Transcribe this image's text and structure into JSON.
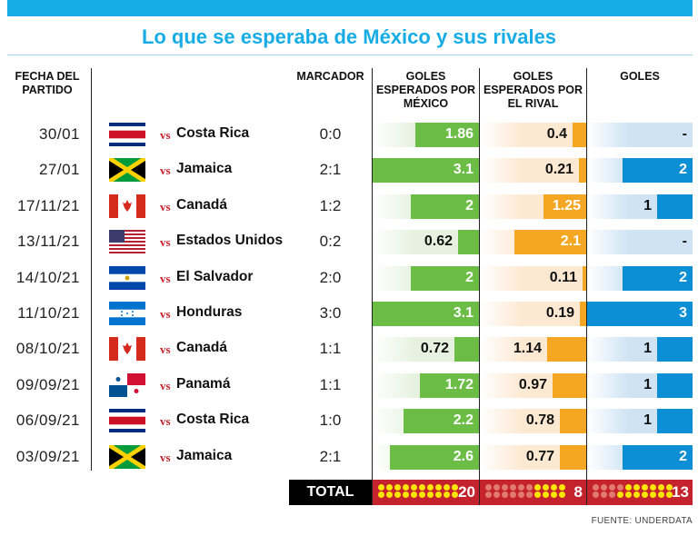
{
  "title": "Lo que se esperaba de México y sus rivales",
  "headers": {
    "fecha": "FECHA DEL PARTIDO",
    "marcador": "MARCADOR",
    "esp_mex": "GOLES ESPERADOS POR MÉXICO",
    "esp_rival": "GOLES ESPERADOS POR EL RIVAL",
    "goles": "GOLES"
  },
  "vs": "vs",
  "colors": {
    "accent": "#18ace6",
    "green": "#6cbd45",
    "green_bg": "#e6f2df",
    "orange": "#f5a623",
    "orange_bg": "#fde9d2",
    "blue": "#0d8fd6",
    "blue_bg": "#cfe3f5",
    "total_bg": "#c4232d",
    "dot_on": "#ffe600",
    "dot_off": "#e27a72"
  },
  "chart_data": {
    "type": "table",
    "title": "Lo que se esperaba de México y sus rivales",
    "scale_max": {
      "esp_mex": 3.1,
      "esp_rival": 3.1,
      "goles": 3
    },
    "rows": [
      {
        "date": "30/01",
        "flag": "costa-rica",
        "rival": "Costa Rica",
        "score": "0:0",
        "xg_mex": 1.86,
        "xg_mex_label": "1.86",
        "xg_rival": 0.4,
        "xg_rival_label": "0.4",
        "goals": 0,
        "goals_label": "-"
      },
      {
        "date": "27/01",
        "flag": "jamaica",
        "rival": "Jamaica",
        "score": "2:1",
        "xg_mex": 3.1,
        "xg_mex_label": "3.1",
        "xg_rival": 0.21,
        "xg_rival_label": "0.21",
        "goals": 2,
        "goals_label": "2"
      },
      {
        "date": "17/11/21",
        "flag": "canada",
        "rival": "Canadá",
        "score": "1:2",
        "xg_mex": 2,
        "xg_mex_label": "2",
        "xg_rival": 1.25,
        "xg_rival_label": "1.25",
        "goals": 1,
        "goals_label": "1"
      },
      {
        "date": "13/11/21",
        "flag": "usa",
        "rival": "Estados Unidos",
        "score": "0:2",
        "xg_mex": 0.62,
        "xg_mex_label": "0.62",
        "xg_rival": 2.1,
        "xg_rival_label": "2.1",
        "goals": 0,
        "goals_label": "-"
      },
      {
        "date": "14/10/21",
        "flag": "el-salvador",
        "rival": "El Salvador",
        "score": "2:0",
        "xg_mex": 2,
        "xg_mex_label": "2",
        "xg_rival": 0.11,
        "xg_rival_label": "0.11",
        "goals": 2,
        "goals_label": "2"
      },
      {
        "date": "11/10/21",
        "flag": "honduras",
        "rival": "Honduras",
        "score": "3:0",
        "xg_mex": 3.1,
        "xg_mex_label": "3.1",
        "xg_rival": 0.19,
        "xg_rival_label": "0.19",
        "goals": 3,
        "goals_label": "3"
      },
      {
        "date": "08/10/21",
        "flag": "canada",
        "rival": "Canadá",
        "score": "1:1",
        "xg_mex": 0.72,
        "xg_mex_label": "0.72",
        "xg_rival": 1.14,
        "xg_rival_label": "1.14",
        "goals": 1,
        "goals_label": "1"
      },
      {
        "date": "09/09/21",
        "flag": "panama",
        "rival": "Panamá",
        "score": "1:1",
        "xg_mex": 1.72,
        "xg_mex_label": "1.72",
        "xg_rival": 0.97,
        "xg_rival_label": "0.97",
        "goals": 1,
        "goals_label": "1"
      },
      {
        "date": "06/09/21",
        "flag": "costa-rica",
        "rival": "Costa Rica",
        "score": "1:0",
        "xg_mex": 2.2,
        "xg_mex_label": "2.2",
        "xg_rival": 0.78,
        "xg_rival_label": "0.78",
        "goals": 1,
        "goals_label": "1"
      },
      {
        "date": "03/09/21",
        "flag": "jamaica",
        "rival": "Jamaica",
        "score": "2:1",
        "xg_mex": 2.6,
        "xg_mex_label": "2.6",
        "xg_rival": 0.77,
        "xg_rival_label": "0.77",
        "goals": 2,
        "goals_label": "2"
      }
    ],
    "totals": {
      "label": "TOTAL",
      "xg_mex": "20",
      "xg_rival": "8",
      "goals": "13",
      "dots_total": 20,
      "dots_on": {
        "xg_mex": 20,
        "xg_rival": 8,
        "goals": 13
      }
    }
  },
  "source": "FUENTE:  UNDERDATA"
}
